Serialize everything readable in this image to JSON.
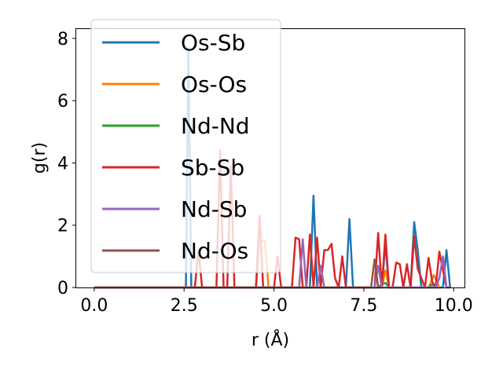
{
  "chart_data": {
    "type": "line",
    "xlabel": "r (Å)",
    "ylabel": "g(r)",
    "xlim": [
      -0.5,
      10.3
    ],
    "ylim": [
      0,
      8.3
    ],
    "xticks": [
      "0.0",
      "2.5",
      "5.0",
      "7.5",
      "10.0"
    ],
    "xtick_values": [
      0,
      2.5,
      5.0,
      7.5,
      10.0
    ],
    "yticks": [
      "0",
      "2",
      "4",
      "6",
      "8"
    ],
    "ytick_values": [
      0,
      2,
      4,
      6,
      8
    ],
    "grid": false,
    "legend_position": "top-left",
    "series": [
      {
        "name": "Os-Sb",
        "color": "#1f77b4",
        "x": [
          0,
          2.5,
          2.55,
          2.62,
          2.7,
          2.75,
          5.9,
          6.0,
          6.1,
          6.2,
          6.3,
          6.9,
          7.0,
          7.1,
          7.2,
          7.3,
          7.9,
          8.0,
          8.1,
          8.2,
          8.7,
          8.8,
          8.9,
          9.0,
          9.1,
          9.6,
          9.7,
          9.8,
          9.9
        ],
        "y": [
          0,
          0,
          0,
          7.7,
          0,
          0,
          0,
          0,
          2.95,
          0,
          0,
          0,
          0,
          2.2,
          0,
          0,
          0,
          0,
          1.4,
          0,
          0,
          0,
          2.1,
          1.2,
          0,
          0,
          0,
          1.2,
          0
        ]
      },
      {
        "name": "Os-Os",
        "color": "#ff7f0e",
        "x": [
          0,
          4.5,
          4.6,
          4.75,
          4.85,
          5.0,
          7.9,
          8.0,
          8.1,
          8.2,
          9.3,
          9.45,
          9.6
        ],
        "y": [
          0,
          0,
          1.5,
          1.5,
          0,
          0,
          0,
          0,
          0.55,
          0,
          0,
          0.4,
          0
        ]
      },
      {
        "name": "Nd-Nd",
        "color": "#2ca02c",
        "x": [
          0,
          7.9,
          8.0,
          8.1,
          8.2,
          9.3,
          9.4,
          9.5
        ],
        "y": [
          0,
          0,
          0.1,
          0.15,
          0,
          0,
          0.1,
          0
        ]
      },
      {
        "name": "Sb-Sb",
        "color": "#d62728",
        "x": [
          0,
          2.8,
          2.9,
          3.0,
          3.1,
          3.2,
          3.3,
          3.4,
          3.5,
          3.6,
          3.7,
          3.8,
          3.9,
          4.0,
          4.1,
          4.2,
          4.3,
          4.4,
          4.5,
          4.6,
          4.7,
          4.8,
          4.9,
          5.0,
          5.1,
          5.2,
          5.3,
          5.4,
          5.5,
          5.6,
          5.7,
          5.8,
          5.9,
          6.0,
          6.1,
          6.2,
          6.3,
          6.4,
          6.5,
          6.6,
          6.7,
          6.8,
          6.9,
          7.0,
          7.1,
          7.2,
          7.3,
          7.4,
          7.5,
          7.6,
          7.7,
          7.8,
          7.9,
          8.0,
          8.1,
          8.2,
          8.3,
          8.4,
          8.5,
          8.6,
          8.7,
          8.8,
          8.9,
          9.0,
          9.1,
          9.2,
          9.3,
          9.4,
          9.5,
          9.6,
          9.7,
          9.8,
          9.9
        ],
        "y": [
          0,
          0,
          1.2,
          0,
          0,
          0,
          0,
          0,
          4.4,
          0,
          0,
          3.9,
          0,
          0,
          0,
          0,
          0,
          0,
          0,
          2.3,
          0,
          0,
          0,
          0,
          1.0,
          0,
          0,
          0,
          0,
          1.6,
          1.55,
          0,
          0,
          1.7,
          0,
          1.6,
          0,
          1.2,
          1.2,
          1.4,
          0.3,
          0,
          1.0,
          0,
          0,
          0,
          0,
          0,
          0,
          0,
          0,
          0,
          1.75,
          0,
          1.7,
          0,
          0,
          0.8,
          0.75,
          0,
          0.75,
          0,
          1.65,
          0.6,
          0.3,
          0,
          0.95,
          0.2,
          0,
          1.15,
          0.55,
          0,
          0
        ]
      },
      {
        "name": "Nd-Sb",
        "color": "#9467bd",
        "x": [
          0,
          5.7,
          5.8,
          5.9,
          6.0,
          6.2,
          6.3,
          6.4,
          7.8,
          7.9,
          8.0,
          9.5,
          9.6,
          9.7,
          9.8
        ],
        "y": [
          0,
          0,
          1.55,
          0,
          0,
          0,
          0.7,
          0,
          0,
          0.7,
          0,
          0,
          0.3,
          1.0,
          0
        ]
      },
      {
        "name": "Nd-Os",
        "color": "#8c564b",
        "x": [
          0,
          7.7,
          7.8,
          7.9,
          8.0
        ],
        "y": [
          0,
          0,
          0.9,
          0,
          0
        ]
      }
    ]
  }
}
